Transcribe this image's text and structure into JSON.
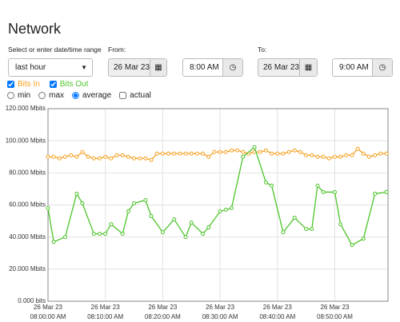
{
  "header": {
    "title": "Network"
  },
  "controls": {
    "range_label": "Select or enter date/time range",
    "range_value": "last hour",
    "from_label": "From:",
    "from_date": "26 Mar 23",
    "from_time": "8:00 AM",
    "to_label": "To:",
    "to_date": "26 Mar 23",
    "to_time": "9:00 AM",
    "checkboxes": [
      "Bits In",
      "Bits Out"
    ],
    "radios": [
      "min",
      "max",
      "average"
    ],
    "actual": "actual",
    "selected_radio": "average"
  },
  "chart_data": {
    "type": "line",
    "grid": true,
    "ylim": [
      0,
      120
    ],
    "yticks": [
      {
        "value": 0,
        "label": "0.000 bits"
      },
      {
        "value": 20,
        "label": "20.000 Mbits"
      },
      {
        "value": 40,
        "label": "40.000 Mbits"
      },
      {
        "value": 60,
        "label": "60.000 Mbits"
      },
      {
        "value": 80,
        "label": "80.000 Mbits"
      },
      {
        "value": 100,
        "label": "100.000 Mbits"
      },
      {
        "value": 120,
        "label": "120.000 Mbits"
      }
    ],
    "xlim": [
      "08:00:00 AM",
      "08:59:00 AM"
    ],
    "xticks": [
      {
        "date": "26 Mar 23",
        "time": "08:00:00 AM"
      },
      {
        "date": "26 Mar 23",
        "time": "08:10:00 AM"
      },
      {
        "date": "26 Mar 23",
        "time": "08:20:00 AM"
      },
      {
        "date": "26 Mar 23",
        "time": "08:30:00 AM"
      },
      {
        "date": "26 Mar 23",
        "time": "08:40:00 AM"
      },
      {
        "date": "26 Mar 23",
        "time": "08:50:00 AM"
      }
    ],
    "series": [
      {
        "name": "Bits In",
        "color": "#f5a020",
        "x": [
          "08:00:00 AM",
          "08:01:00 AM",
          "08:02:00 AM",
          "08:03:00 AM",
          "08:04:00 AM",
          "08:05:00 AM",
          "08:06:00 AM",
          "08:07:00 AM",
          "08:08:00 AM",
          "08:09:00 AM",
          "08:10:00 AM",
          "08:11:00 AM",
          "08:12:00 AM",
          "08:13:00 AM",
          "08:14:00 AM",
          "08:15:00 AM",
          "08:16:00 AM",
          "08:17:00 AM",
          "08:18:00 AM",
          "08:19:00 AM",
          "08:20:00 AM",
          "08:21:00 AM",
          "08:22:00 AM",
          "08:23:00 AM",
          "08:24:00 AM",
          "08:25:00 AM",
          "08:26:00 AM",
          "08:27:00 AM",
          "08:28:00 AM",
          "08:29:00 AM",
          "08:30:00 AM",
          "08:31:00 AM",
          "08:32:00 AM",
          "08:33:00 AM",
          "08:34:00 AM",
          "08:35:00 AM",
          "08:36:00 AM",
          "08:37:00 AM",
          "08:38:00 AM",
          "08:39:00 AM",
          "08:40:00 AM",
          "08:41:00 AM",
          "08:42:00 AM",
          "08:43:00 AM",
          "08:44:00 AM",
          "08:45:00 AM",
          "08:46:00 AM",
          "08:47:00 AM",
          "08:48:00 AM",
          "08:49:00 AM",
          "08:50:00 AM",
          "08:51:00 AM",
          "08:52:00 AM",
          "08:53:00 AM",
          "08:54:00 AM",
          "08:55:00 AM",
          "08:56:00 AM",
          "08:57:00 AM",
          "08:58:00 AM",
          "08:59:00 AM"
        ],
        "values": [
          90,
          90,
          89,
          90,
          91,
          90,
          93,
          90,
          89,
          89,
          90,
          89,
          91,
          91,
          90,
          89,
          89,
          89,
          88,
          92,
          92,
          92,
          92,
          92,
          92,
          92,
          92,
          92,
          90,
          93,
          93,
          93,
          94,
          94,
          93,
          92,
          93,
          93,
          94,
          92,
          92,
          92,
          93,
          94,
          93,
          91,
          91,
          90,
          90,
          89,
          90,
          90,
          91,
          91,
          95,
          92,
          90,
          91,
          92,
          92
        ]
      },
      {
        "name": "Bits Out",
        "color": "#4cc42a",
        "x": [
          "08:00:00 AM",
          "08:01:00 AM",
          "08:03:00 AM",
          "08:05:00 AM",
          "08:06:00 AM",
          "08:08:00 AM",
          "08:09:00 AM",
          "08:10:00 AM",
          "08:11:00 AM",
          "08:13:00 AM",
          "08:14:00 AM",
          "08:15:00 AM",
          "08:17:00 AM",
          "08:18:00 AM",
          "08:20:00 AM",
          "08:22:00 AM",
          "08:24:00 AM",
          "08:25:00 AM",
          "08:27:00 AM",
          "08:28:00 AM",
          "08:30:00 AM",
          "08:31:00 AM",
          "08:32:00 AM",
          "08:34:00 AM",
          "08:36:00 AM",
          "08:38:00 AM",
          "08:39:00 AM",
          "08:41:00 AM",
          "08:43:00 AM",
          "08:45:00 AM",
          "08:46:00 AM",
          "08:47:00 AM",
          "08:48:00 AM",
          "08:50:00 AM",
          "08:51:00 AM",
          "08:53:00 AM",
          "08:55:00 AM",
          "08:57:00 AM",
          "08:59:00 AM"
        ],
        "values": [
          58,
          37,
          40,
          67,
          61,
          42,
          42,
          42,
          48,
          42,
          56,
          61,
          63,
          53,
          43,
          51,
          40,
          49,
          42,
          46,
          56,
          57,
          58,
          90,
          96,
          74,
          72,
          43,
          52,
          45,
          45,
          72,
          68,
          68,
          48,
          35,
          39,
          67,
          68
        ]
      }
    ]
  }
}
